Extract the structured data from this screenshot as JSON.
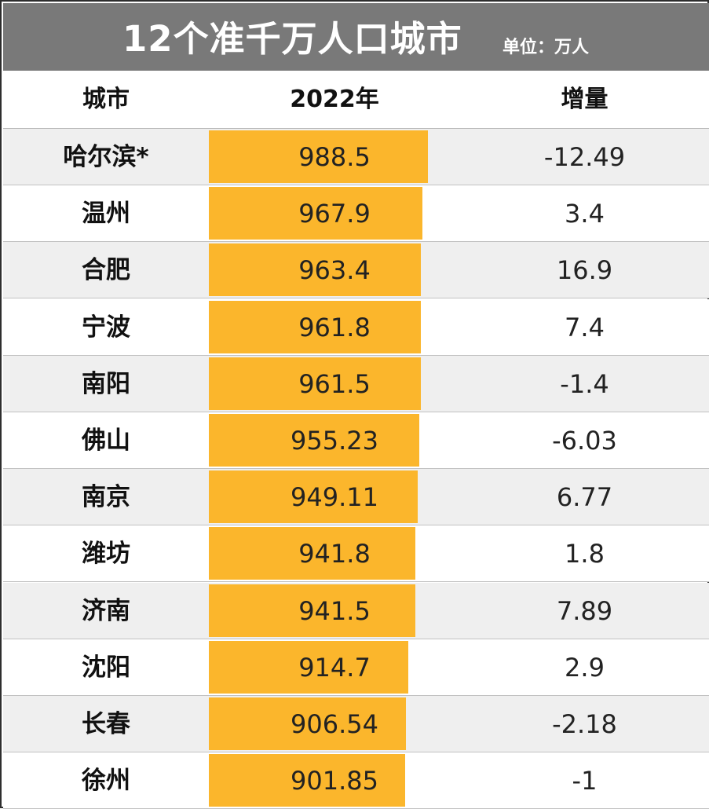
{
  "title": "12个准千万人口城市",
  "unit": "单位：万人",
  "headers": {
    "city": "城市",
    "year": "2022年",
    "increase": "增量"
  },
  "colors": {
    "bar": "#FBB62C",
    "title_bg": "#797979"
  },
  "chart_data": {
    "type": "table",
    "title": "12个准千万人口城市",
    "unit": "单位：万人",
    "columns": [
      "城市",
      "2022年",
      "增量"
    ],
    "bar_range": [
      0,
      1100
    ],
    "rows": [
      {
        "city": "哈尔滨*",
        "population": "988.5",
        "increase": "-12.49"
      },
      {
        "city": "温州",
        "population": "967.9",
        "increase": "3.4"
      },
      {
        "city": "合肥",
        "population": "963.4",
        "increase": "16.9"
      },
      {
        "city": "宁波",
        "population": "961.8",
        "increase": "7.4"
      },
      {
        "city": "南阳",
        "population": "961.5",
        "increase": "-1.4"
      },
      {
        "city": "佛山",
        "population": "955.23",
        "increase": "-6.03"
      },
      {
        "city": "南京",
        "population": "949.11",
        "increase": "6.77"
      },
      {
        "city": "潍坊",
        "population": "941.8",
        "increase": "1.8"
      },
      {
        "city": "济南",
        "population": "941.5",
        "increase": "7.89"
      },
      {
        "city": "沈阳",
        "population": "914.7",
        "increase": "2.9"
      },
      {
        "city": "长春",
        "population": "906.54",
        "increase": "-2.18"
      },
      {
        "city": "徐州",
        "population": "901.85",
        "increase": "-1"
      }
    ]
  }
}
